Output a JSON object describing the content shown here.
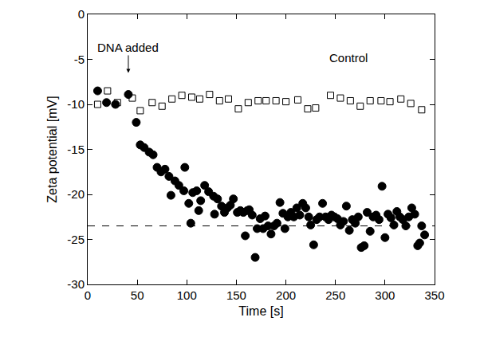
{
  "chart_data": {
    "type": "scatter",
    "xlabel": "Time [s]",
    "ylabel": "Zeta potential [mV]",
    "xlim": [
      0,
      350
    ],
    "xticks": [
      0,
      50,
      100,
      150,
      200,
      250,
      300,
      350
    ],
    "ylim": [
      -30,
      0
    ],
    "yticks": [
      -30,
      -25,
      -20,
      -15,
      -10,
      -5,
      0
    ],
    "grid": false,
    "annotations": [
      {
        "text": "DNA added",
        "x": 41,
        "y": -6.5,
        "arrow": true
      },
      {
        "text": "Control",
        "x": 263,
        "y": -4.8,
        "arrow": false
      }
    ],
    "series": [
      {
        "type": "scatter",
        "marker": "circle",
        "color": "#000000",
        "x": [
          10,
          19,
          28,
          41,
          49,
          53,
          57,
          62,
          66,
          70,
          74,
          78,
          82,
          84,
          88,
          92,
          97,
          98,
          102,
          104,
          106,
          110,
          112,
          114,
          118,
          122,
          127,
          128,
          131,
          135,
          138,
          141,
          144,
          147,
          151,
          154,
          157,
          159,
          161,
          163,
          166,
          169,
          171,
          174,
          177,
          179,
          182,
          185,
          188,
          191,
          194,
          197,
          199,
          202,
          205,
          208,
          211,
          214,
          217,
          220,
          223,
          225,
          228,
          231,
          234,
          237,
          240,
          243,
          246,
          249,
          252,
          255,
          258,
          261,
          264,
          267,
          270,
          273,
          276,
          279,
          282,
          285,
          288,
          291,
          294,
          297,
          300,
          303,
          306,
          309,
          312,
          315,
          318,
          321,
          324,
          327,
          330,
          333,
          335,
          337,
          340
        ],
        "values": [
          -8.5,
          -9.8,
          -10,
          -8.9,
          -12,
          -14.5,
          -14.8,
          -15.3,
          -15.6,
          -17,
          -17.5,
          -17.2,
          -18,
          -20.1,
          -18.5,
          -19,
          -19.6,
          -17,
          -21,
          -23.2,
          -19.8,
          -19.6,
          -21.8,
          -20.7,
          -19,
          -19.7,
          -20.2,
          -22.2,
          -20.5,
          -21.3,
          -22,
          -21.5,
          -21.2,
          -20.5,
          -22,
          -21.8,
          -22,
          -24.6,
          -21.8,
          -21.7,
          -22.3,
          -27,
          -23.8,
          -22.7,
          -23.8,
          -22.4,
          -23.5,
          -24.4,
          -23.5,
          -23.2,
          -20.9,
          -22.1,
          -23.8,
          -22.5,
          -22,
          -22.5,
          -21.5,
          -22.3,
          -21,
          -21.5,
          -22.5,
          -23.4,
          -25.6,
          -22.8,
          -22.5,
          -21,
          -22.5,
          -22.8,
          -22.3,
          -22.5,
          -22.7,
          -23.4,
          -23,
          -21.3,
          -24,
          -22.8,
          -23.2,
          -22.5,
          -25.9,
          -25.7,
          -22,
          -24.1,
          -22.5,
          -22.3,
          -22.8,
          -19.1,
          -24.8,
          -22.2,
          -22.6,
          -23.4,
          -21.9,
          -22.5,
          -22.8,
          -23.5,
          -22.5,
          -21.5,
          -22.2,
          -25.7,
          -25.4,
          -23.5,
          -24.5
        ]
      },
      {
        "type": "scatter",
        "marker": "square-open",
        "color": "#000000",
        "x": [
          10,
          20,
          30,
          45,
          53,
          65,
          75,
          85,
          95,
          105,
          113,
          123,
          133,
          142,
          152,
          162,
          172,
          180,
          190,
          200,
          212,
          222,
          230,
          245,
          255,
          265,
          275,
          285,
          296,
          305,
          316,
          326,
          337
        ],
        "values": [
          -10,
          -8.5,
          -9.8,
          -9.3,
          -10.7,
          -9.8,
          -10.2,
          -9.4,
          -9,
          -9.2,
          -9.4,
          -8.9,
          -9.6,
          -9.4,
          -10.5,
          -9.8,
          -9.6,
          -9.6,
          -9.6,
          -9.7,
          -9.5,
          -10.5,
          -10.4,
          -9,
          -9.3,
          -9.6,
          -10.2,
          -9.6,
          -9.6,
          -9.7,
          -9.4,
          -9.9,
          -10.6
        ]
      },
      {
        "type": "line",
        "line_style": "dashed",
        "color": "#000000",
        "x": [
          0,
          350
        ],
        "values": [
          -23.5,
          -23.5
        ]
      }
    ]
  }
}
